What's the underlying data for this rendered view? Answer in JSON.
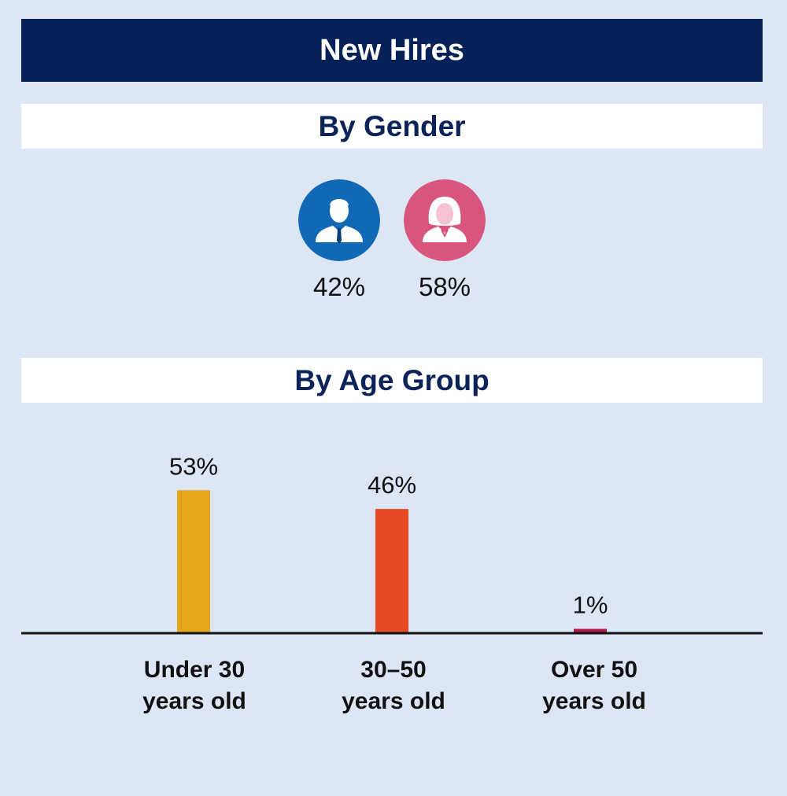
{
  "header": {
    "title": "New Hires"
  },
  "gender": {
    "title": "By Gender",
    "items": [
      {
        "icon": "male-person-icon",
        "label": "42%",
        "value": 42,
        "color": "#1168b6"
      },
      {
        "icon": "female-person-icon",
        "label": "58%",
        "value": 58,
        "color": "#d8567c"
      }
    ]
  },
  "age": {
    "title": "By Age Group"
  },
  "chart_data": {
    "type": "bar",
    "categories": [
      "Under 30 years old",
      "30–50 years old",
      "Over 50 years old"
    ],
    "category_lines": [
      [
        "Under 30",
        "years old"
      ],
      [
        "30–50",
        "years old"
      ],
      [
        "Over 50",
        "years old"
      ]
    ],
    "values": [
      53,
      46,
      1
    ],
    "labels": [
      "53%",
      "46%",
      "1%"
    ],
    "colors": [
      "#e5a61b",
      "#e64a25",
      "#b5174f"
    ],
    "ylim": [
      0,
      60
    ],
    "grid": false,
    "legend": "none"
  }
}
